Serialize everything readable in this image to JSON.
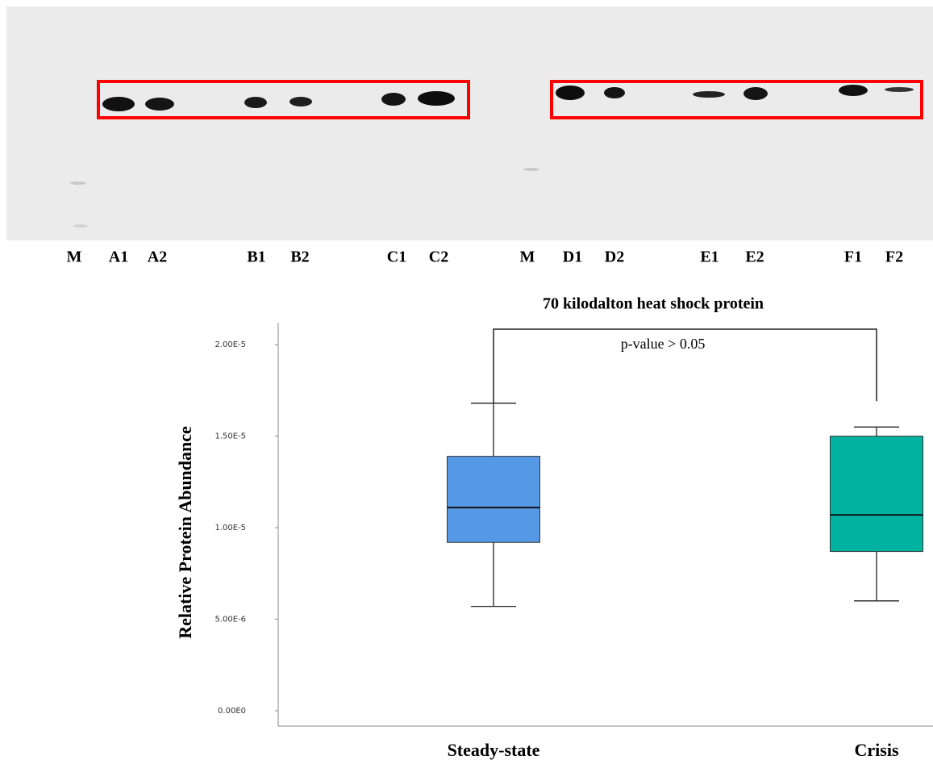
{
  "blot": {
    "lanes": [
      "M",
      "A1",
      "A2",
      "B1",
      "B2",
      "C1",
      "C2",
      "M",
      "D1",
      "D2",
      "E1",
      "E2",
      "F1",
      "F2"
    ]
  },
  "chart_data": {
    "type": "box",
    "title": "70 kilodalton heat shock protein",
    "y_label": "Relative Protein Abundance",
    "annotation": "p-value > 0.05",
    "categories": [
      "Steady-state",
      "Crisis"
    ],
    "boxes": [
      {
        "whislo": 5.7e-06,
        "q1": 9.2e-06,
        "med": 1.11e-05,
        "q3": 1.39e-05,
        "whishi": 1.68e-05,
        "color": "#5599e6"
      },
      {
        "whislo": 6e-06,
        "q1": 8.7e-06,
        "med": 1.07e-05,
        "q3": 1.5e-05,
        "whishi": 1.55e-05,
        "color": "#00b3a0"
      }
    ],
    "ylim": [
      -8.4e-07,
      2.12e-05
    ],
    "yticks": [
      {
        "value": 0,
        "label": "0.00E0"
      },
      {
        "value": 5e-06,
        "label": "5.00E-6"
      },
      {
        "value": 1e-05,
        "label": "1.00E-5"
      },
      {
        "value": 1.5e-05,
        "label": "1.50E-5"
      },
      {
        "value": 2e-05,
        "label": "2.00E-5"
      }
    ],
    "grid": false
  }
}
